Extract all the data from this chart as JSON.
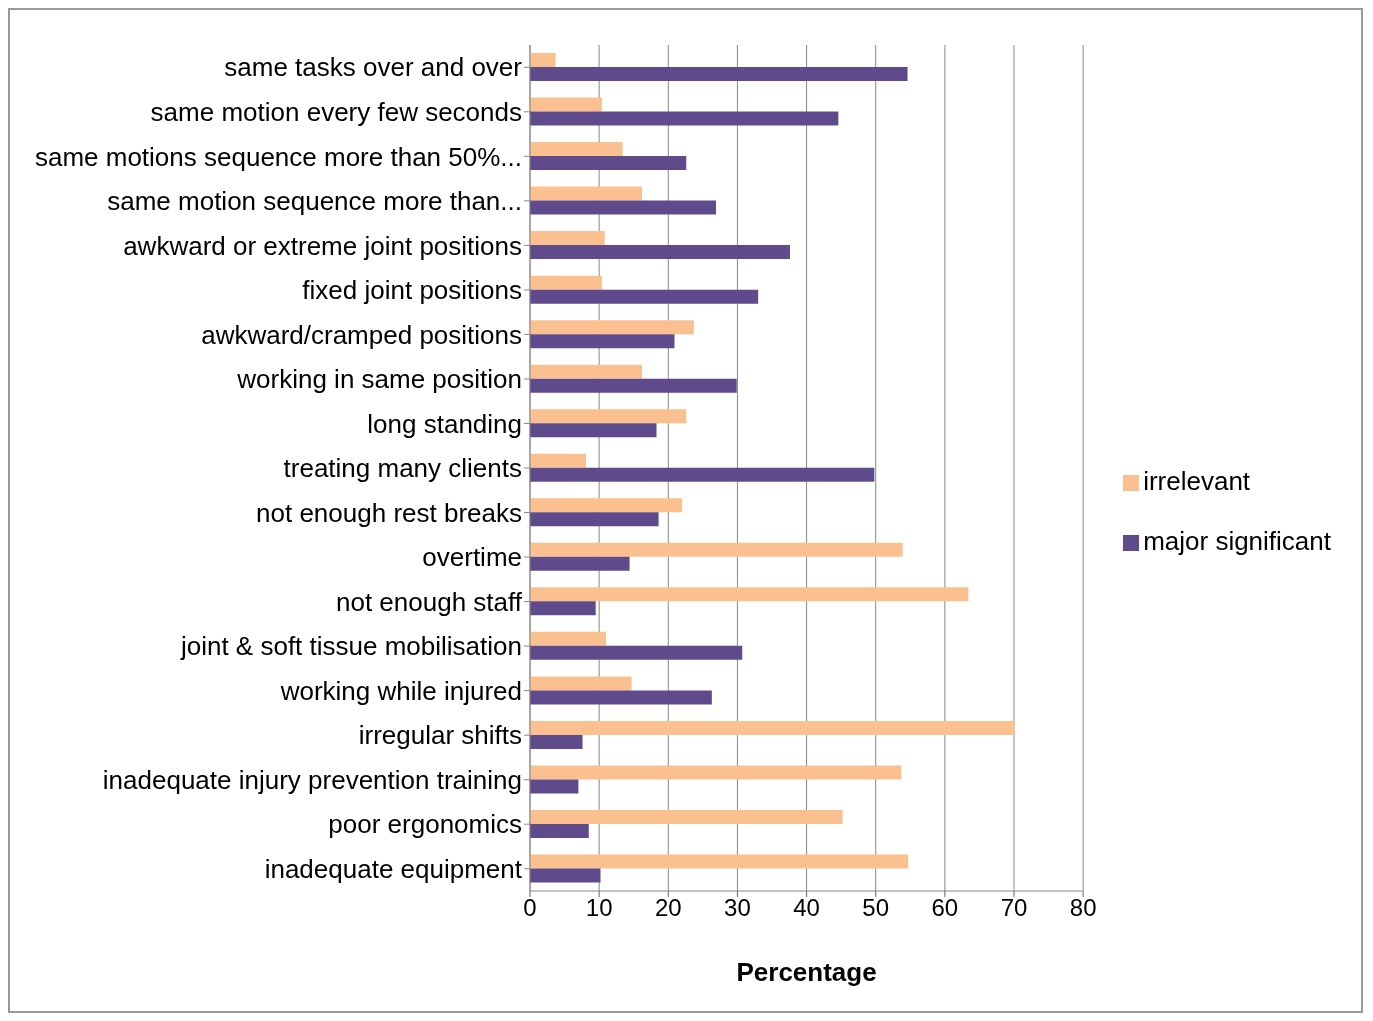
{
  "chart_data": {
    "type": "bar",
    "orientation": "horizontal",
    "xlabel": "Percentage",
    "categories": [
      "same tasks over and over",
      "same motion every few seconds",
      "same motions sequence more than 50%...",
      "same motion sequence more than...",
      "awkward or extreme joint positions",
      "fixed joint positions",
      "awkward/cramped positions",
      "working in same position",
      "long standing",
      "treating many clients",
      "not enough rest breaks",
      "overtime",
      "not enough staff",
      "joint & soft tissue mobilisation",
      "working while injured",
      "irregular shifts",
      "inadequate injury prevention training",
      "poor ergonomics",
      "inadequate equipment"
    ],
    "series": [
      {
        "name": "irrelevant",
        "color": "#fac090",
        "values": [
          3.7,
          10.4,
          13.4,
          16.2,
          10.8,
          10.4,
          23.7,
          16.2,
          22.6,
          8.1,
          22.0,
          53.9,
          63.4,
          11.0,
          14.7,
          70.1,
          53.7,
          45.2,
          54.7
        ]
      },
      {
        "name": "major significant",
        "color": "#5f4b8b",
        "values": [
          54.6,
          44.6,
          22.6,
          26.9,
          37.6,
          33.0,
          20.9,
          29.9,
          18.3,
          49.8,
          18.6,
          14.4,
          9.5,
          30.7,
          26.3,
          7.6,
          7.0,
          8.5,
          10.2
        ]
      }
    ],
    "xlim": [
      0,
      80
    ],
    "xticks": [
      0,
      10,
      20,
      30,
      40,
      50,
      60,
      70,
      80
    ],
    "grid": "x",
    "legend": "right"
  }
}
